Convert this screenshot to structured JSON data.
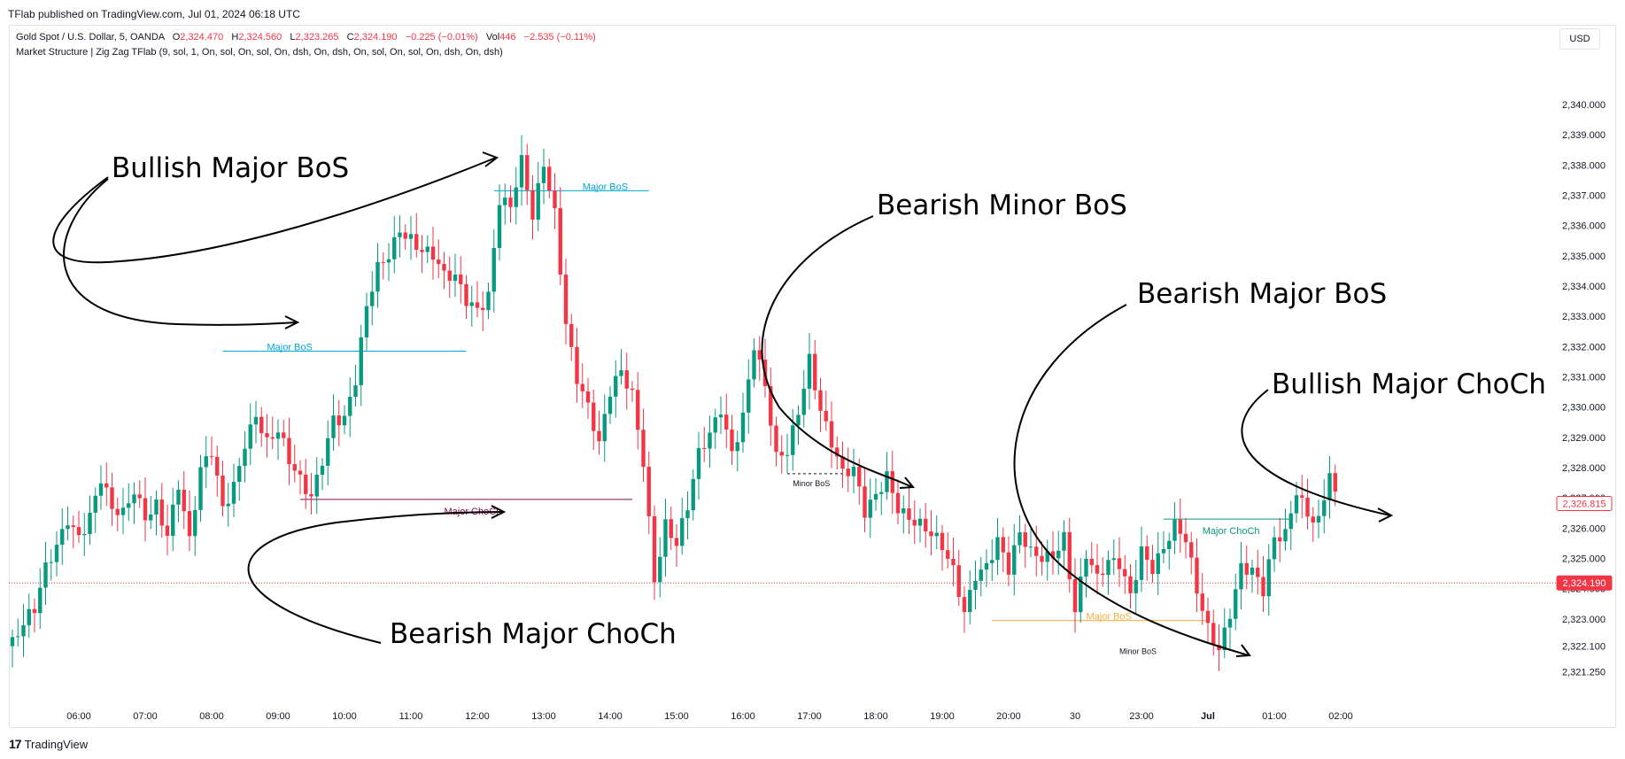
{
  "header": {
    "publisher": "TFlab published on TradingView.com, Jul 01, 2024 06:18 UTC",
    "currency": "USD",
    "footer_brand": "TradingView",
    "logo_mark": "17"
  },
  "legend": {
    "symbol": "Gold Spot / U.S. Dollar, 5, OANDA",
    "o_label": "O",
    "o_value": "2,324.470",
    "h_label": "H",
    "h_value": "2,324.560",
    "l_label": "L",
    "l_value": "2,323.265",
    "c_label": "C",
    "c_value": "2,324.190",
    "change": "−0.225 (−0.01%)",
    "vol_label": "Vol",
    "vol_value": "446",
    "vol_change": "−2.535 (−0.11%)",
    "indicator": "Market Structure | Zig Zag TFlab (9, sol, 1, On, sol, On, sol, On, dsh, On, dsh, On, sol, On, sol, On, dsh, On, dsh)"
  },
  "colors": {
    "up": "#089981",
    "down": "#f23645",
    "major_bos_bull": "#00a8d6",
    "major_choch_bear": "#880e4f",
    "major_choch_bull": "#089981",
    "major_bos_bear": "#f5b041",
    "minor": "#131722",
    "price_line": "#f23645"
  },
  "annotations": [
    {
      "id": "bullish-major-bos",
      "text": "Bullish Major BoS"
    },
    {
      "id": "bearish-minor-bos",
      "text": "Bearish Minor BoS"
    },
    {
      "id": "bearish-major-bos",
      "text": "Bearish Major BoS"
    },
    {
      "id": "bullish-major-choch",
      "text": "Bullish Major ChoCh"
    },
    {
      "id": "bearish-major-choch",
      "text": "Bearish Major ChoCh"
    }
  ],
  "chart_data": {
    "type": "candlestick",
    "y_axis_labels": [
      "2,340.000",
      "2,339.000",
      "2,338.000",
      "2,337.000",
      "2,336.000",
      "2,335.000",
      "2,334.000",
      "2,333.000",
      "2,332.000",
      "2,331.000",
      "2,330.000",
      "2,329.000",
      "2,328.000",
      "2,327.000",
      "2,326.000",
      "2,325.000",
      "2,324.000",
      "2,323.000",
      "2,322.100",
      "2,321.250"
    ],
    "y_axis_values": [
      2340,
      2339,
      2338,
      2337,
      2336,
      2335,
      2334,
      2333,
      2332,
      2331,
      2330,
      2329,
      2328,
      2327,
      2326,
      2325,
      2324,
      2323,
      2322.1,
      2321.25
    ],
    "ylim": [
      2320.45,
      2341.2
    ],
    "x_axis_labels": [
      "06:00",
      "07:00",
      "08:00",
      "09:00",
      "10:00",
      "11:00",
      "12:00",
      "13:00",
      "14:00",
      "15:00",
      "16:00",
      "17:00",
      "18:00",
      "19:00",
      "20:00",
      "30",
      "23:00",
      "Jul",
      "01:00",
      "02:00"
    ],
    "x_axis_positions": [
      12,
      24,
      36,
      48,
      60,
      72,
      84,
      96,
      108,
      120,
      132,
      144,
      156,
      168,
      180,
      192,
      204,
      216,
      228,
      240
    ],
    "price_badges": [
      {
        "label": "2,326.815",
        "value": 2326.815,
        "style": "outline"
      },
      {
        "label": "2,324.190",
        "value": 2324.19,
        "style": "filled"
      }
    ],
    "current_price": 2324.19,
    "close_path": [
      [
        0,
        2322.2
      ],
      [
        4,
        2323.0
      ],
      [
        6,
        2324.5
      ],
      [
        8,
        2325.5
      ],
      [
        10,
        2326.6
      ],
      [
        12,
        2326.0
      ],
      [
        14,
        2326.5
      ],
      [
        16,
        2327.5
      ],
      [
        18,
        2326.3
      ],
      [
        20,
        2326.2
      ],
      [
        22,
        2327.2
      ],
      [
        24,
        2326.6
      ],
      [
        26,
        2327.1
      ],
      [
        28,
        2326.0
      ],
      [
        30,
        2327.4
      ],
      [
        32,
        2325.3
      ],
      [
        34,
        2327.6
      ],
      [
        36,
        2328.4
      ],
      [
        38,
        2326.8
      ],
      [
        40,
        2327.7
      ],
      [
        42,
        2329.1
      ],
      [
        44,
        2329.8
      ],
      [
        46,
        2328.6
      ],
      [
        48,
        2328.9
      ],
      [
        50,
        2328.0
      ],
      [
        52,
        2327.6
      ],
      [
        54,
        2327.3
      ],
      [
        56,
        2328.6
      ],
      [
        58,
        2329.8
      ],
      [
        60,
        2329.5
      ],
      [
        62,
        2330.6
      ],
      [
        64,
        2333.0
      ],
      [
        66,
        2334.5
      ],
      [
        68,
        2335.2
      ],
      [
        70,
        2336.2
      ],
      [
        72,
        2335.8
      ],
      [
        74,
        2335.2
      ],
      [
        76,
        2334.8
      ],
      [
        78,
        2334.0
      ],
      [
        80,
        2334.1
      ],
      [
        82,
        2333.6
      ],
      [
        84,
        2333.5
      ],
      [
        86,
        2334.0
      ],
      [
        88,
        2337.0
      ],
      [
        90,
        2336.5
      ],
      [
        92,
        2337.8
      ],
      [
        94,
        2336.0
      ],
      [
        96,
        2338.0
      ],
      [
        98,
        2336.6
      ],
      [
        100,
        2333.1
      ],
      [
        102,
        2331.2
      ],
      [
        104,
        2330.0
      ],
      [
        106,
        2328.5
      ],
      [
        108,
        2330.2
      ],
      [
        110,
        2331.0
      ],
      [
        112,
        2330.5
      ],
      [
        114,
        2328.5
      ],
      [
        116,
        2324.6
      ],
      [
        118,
        2326.2
      ],
      [
        120,
        2325.3
      ],
      [
        122,
        2326.4
      ],
      [
        124,
        2328.2
      ],
      [
        126,
        2329.1
      ],
      [
        128,
        2330.2
      ],
      [
        130,
        2328.8
      ],
      [
        132,
        2329.9
      ],
      [
        134,
        2332.0
      ],
      [
        136,
        2330.4
      ],
      [
        138,
        2328.0
      ],
      [
        140,
        2328.4
      ],
      [
        142,
        2330.0
      ],
      [
        144,
        2331.9
      ],
      [
        146,
        2330.2
      ],
      [
        148,
        2328.9
      ],
      [
        150,
        2327.6
      ],
      [
        152,
        2327.6
      ],
      [
        154,
        2326.3
      ],
      [
        156,
        2327.1
      ],
      [
        158,
        2328.0
      ],
      [
        160,
        2327.0
      ],
      [
        162,
        2326.5
      ],
      [
        164,
        2326.0
      ],
      [
        166,
        2325.5
      ],
      [
        168,
        2325.1
      ],
      [
        170,
        2324.5
      ],
      [
        172,
        2323.4
      ],
      [
        174,
        2324.8
      ],
      [
        176,
        2325.0
      ],
      [
        178,
        2325.6
      ],
      [
        180,
        2324.4
      ],
      [
        182,
        2325.5
      ],
      [
        184,
        2325.0
      ],
      [
        186,
        2325.1
      ],
      [
        188,
        2325.4
      ],
      [
        190,
        2326.0
      ],
      [
        192,
        2323.4
      ],
      [
        194,
        2325.0
      ],
      [
        196,
        2324.0
      ],
      [
        198,
        2324.6
      ],
      [
        200,
        2324.8
      ],
      [
        202,
        2324.0
      ],
      [
        204,
        2325.6
      ],
      [
        206,
        2324.9
      ],
      [
        208,
        2325.3
      ],
      [
        210,
        2325.8
      ],
      [
        212,
        2325.3
      ],
      [
        214,
        2323.8
      ],
      [
        216,
        2322.8
      ],
      [
        218,
        2322.3
      ],
      [
        220,
        2323.5
      ],
      [
        222,
        2324.8
      ],
      [
        224,
        2324.4
      ],
      [
        226,
        2323.6
      ],
      [
        228,
        2325.4
      ],
      [
        230,
        2325.8
      ],
      [
        232,
        2327.5
      ],
      [
        234,
        2326.8
      ],
      [
        236,
        2326.4
      ],
      [
        238,
        2327.8
      ],
      [
        239,
        2326.8
      ]
    ],
    "structure_lines": [
      {
        "label": "Major BoS",
        "kind": "bullish-bos",
        "price": 2337.15,
        "x": [
          87,
          115
        ],
        "label_x": 103
      },
      {
        "label": "Major BoS",
        "kind": "bullish-bos",
        "price": 2331.85,
        "x": [
          38,
          82
        ],
        "label_x": 46
      },
      {
        "label": "Major ChoCh",
        "kind": "bearish-choch",
        "price": 2326.95,
        "x": [
          52,
          112
        ],
        "label_x": 78
      },
      {
        "label": "Minor BoS",
        "kind": "bearish-minor",
        "price": 2327.8,
        "x": [
          140,
          150
        ],
        "label_x": 141
      },
      {
        "label": "Major BoS",
        "kind": "bearish-bos",
        "price": 2322.95,
        "x": [
          177,
          216
        ],
        "label_x": 194
      },
      {
        "label": "Minor BoS",
        "kind": "bearish-minor-small",
        "price": 2322.25,
        "x": [
          196,
          196
        ],
        "label_x": 200
      },
      {
        "label": "Major ChoCh",
        "kind": "bullish-choch",
        "price": 2326.3,
        "x": [
          208,
          231
        ],
        "label_x": 215
      }
    ]
  }
}
